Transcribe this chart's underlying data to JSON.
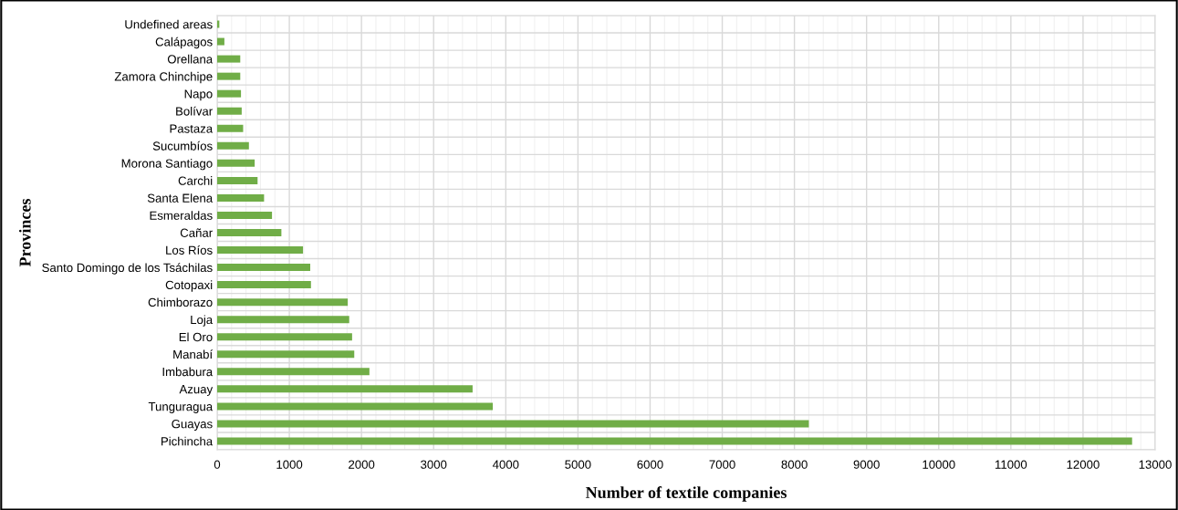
{
  "chart_data": {
    "type": "bar",
    "orientation": "horizontal",
    "xlabel": "Number of textile companies",
    "ylabel": "Provinces",
    "categories": [
      "Undefined areas",
      "Calápagos",
      "Orellana",
      "Zamora Chinchipe",
      "Napo",
      "Bolívar",
      "Pastaza",
      "Sucumbíos",
      "Morona Santiago",
      "Carchi",
      "Santa Elena",
      "Esmeraldas",
      "Cañar",
      "Los Ríos",
      "Santo Domingo de los Tsáchilas",
      "Cotopaxi",
      "Chimborazo",
      "Loja",
      "El Oro",
      "Manabí",
      "Imbabura",
      "Azuay",
      "Tunguragua",
      "Guayas",
      "Pichincha"
    ],
    "values": [
      30,
      100,
      320,
      320,
      330,
      340,
      360,
      440,
      520,
      560,
      650,
      760,
      890,
      1190,
      1290,
      1300,
      1810,
      1830,
      1870,
      1900,
      2110,
      3540,
      3820,
      8200,
      12680
    ],
    "color": "#70ad47",
    "xlim": [
      0,
      13000
    ],
    "xticks": [
      0,
      1000,
      2000,
      3000,
      4000,
      5000,
      6000,
      7000,
      8000,
      9000,
      10000,
      11000,
      12000,
      13000
    ],
    "grid": true
  }
}
